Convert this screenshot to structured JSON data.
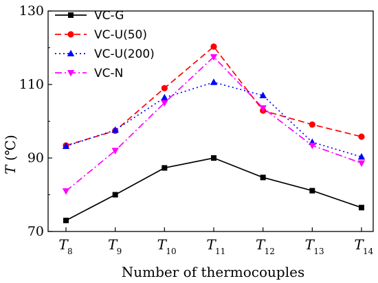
{
  "chart_data": {
    "type": "line",
    "xlabel": "Number of thermocouples",
    "ylabel": {
      "symbol": "T",
      "unit": " (℃)"
    },
    "ylim": [
      70,
      130
    ],
    "yticks": [
      70,
      90,
      110,
      130
    ],
    "categories": [
      {
        "main": "T",
        "sub": "8"
      },
      {
        "main": "T",
        "sub": "9"
      },
      {
        "main": "T",
        "sub": "10"
      },
      {
        "main": "T",
        "sub": "11"
      },
      {
        "main": "T",
        "sub": "12"
      },
      {
        "main": "T",
        "sub": "13"
      },
      {
        "main": "T",
        "sub": "14"
      }
    ],
    "legend_position": "top-left",
    "grid": false,
    "series": [
      {
        "name": "VC-G",
        "color": "#000000",
        "dash": "solid",
        "marker": "square",
        "values": [
          73.0,
          80.0,
          87.3,
          90.0,
          84.7,
          81.1,
          76.5
        ]
      },
      {
        "name": "VC-U(50)",
        "color": "#ff0000",
        "dash": "dashed",
        "marker": "circle",
        "values": [
          93.4,
          97.4,
          109.0,
          120.3,
          102.9,
          99.1,
          95.8
        ]
      },
      {
        "name": "VC-U(200)",
        "color": "#0000ff",
        "dash": "dotted",
        "marker": "triangle-up",
        "values": [
          93.2,
          97.6,
          106.4,
          110.6,
          107.0,
          94.3,
          90.3
        ]
      },
      {
        "name": "VC-N",
        "color": "#ff00ff",
        "dash": "dashdot",
        "marker": "triangle-down",
        "values": [
          81.0,
          92.0,
          105.0,
          117.5,
          103.6,
          93.4,
          88.6
        ]
      }
    ]
  }
}
